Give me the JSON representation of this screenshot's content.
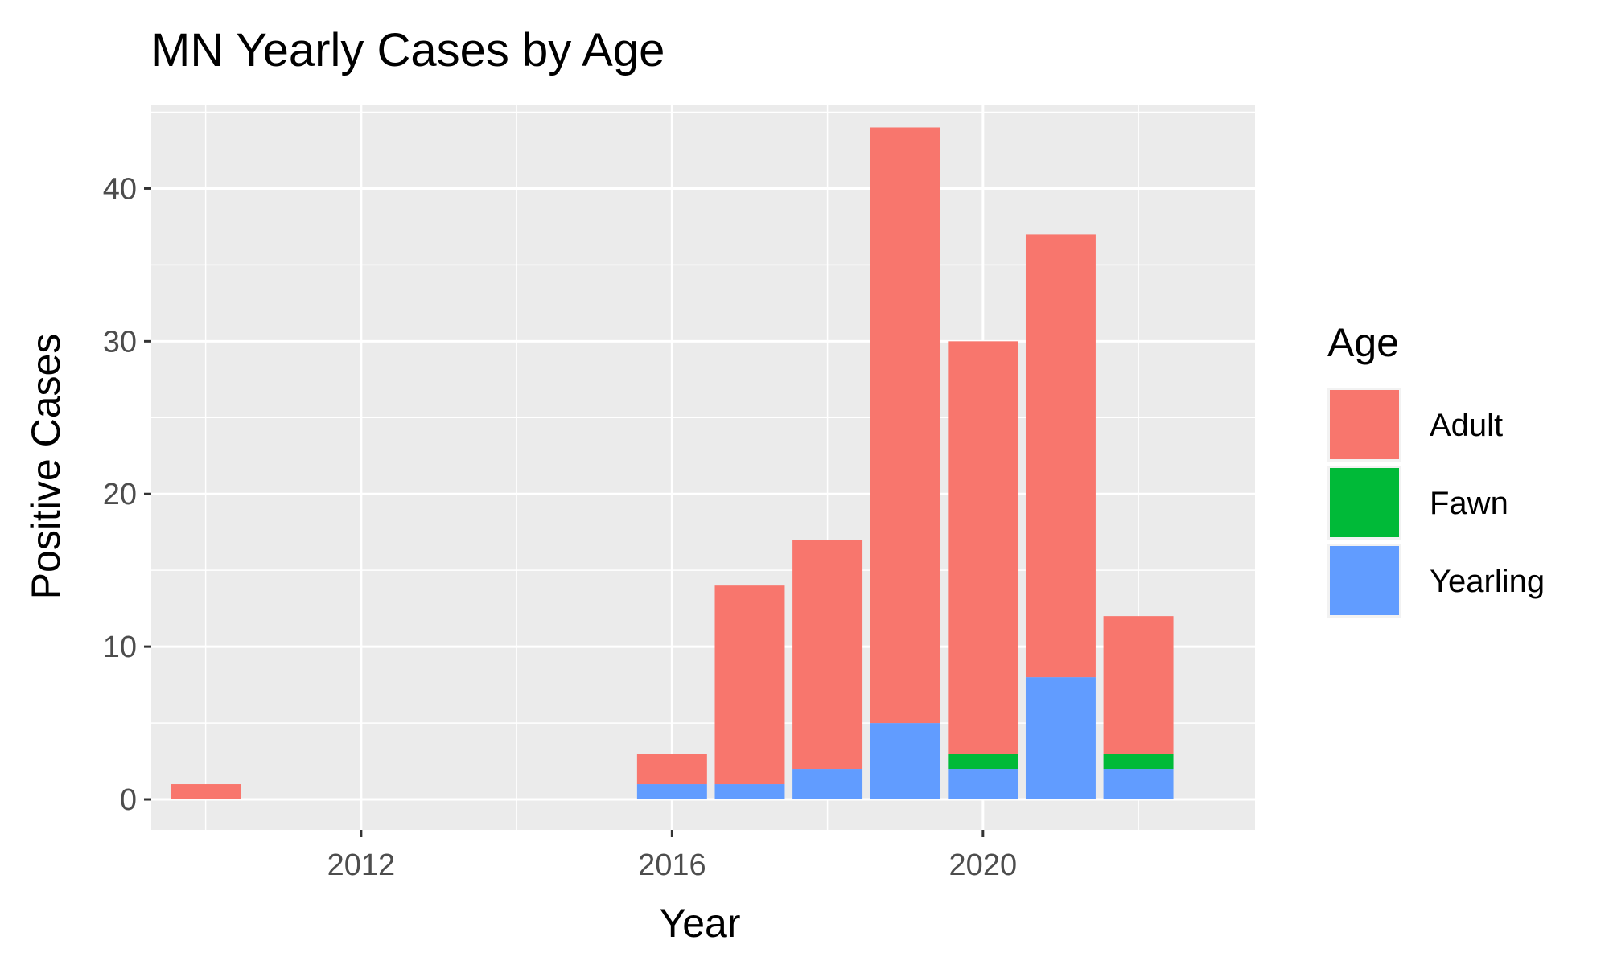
{
  "chart_data": {
    "type": "bar",
    "stacked": true,
    "title": "MN Yearly Cases by Age",
    "xlabel": "Year",
    "ylabel": "Positive Cases",
    "x": [
      2010,
      2016,
      2017,
      2018,
      2019,
      2020,
      2021,
      2022
    ],
    "xlim": [
      2009.3,
      2023.5
    ],
    "ylim": [
      -2,
      45.5
    ],
    "x_ticks": [
      2012,
      2016,
      2020
    ],
    "x_minor_ticks": [
      2010,
      2014,
      2018,
      2022
    ],
    "y_ticks": [
      0,
      10,
      20,
      30,
      40
    ],
    "y_minor_ticks": [
      5,
      15,
      25,
      35,
      45
    ],
    "grid": true,
    "legend": {
      "title": "Age",
      "position": "right"
    },
    "series": [
      {
        "name": "Yearling",
        "color": "#619CFF",
        "values": [
          0,
          1,
          1,
          2,
          5,
          2,
          8,
          2
        ]
      },
      {
        "name": "Fawn",
        "color": "#00BA38",
        "values": [
          0,
          0,
          0,
          0,
          0,
          1,
          0,
          1
        ]
      },
      {
        "name": "Adult",
        "color": "#F8766D",
        "values": [
          1,
          2,
          13,
          15,
          39,
          27,
          29,
          9
        ]
      }
    ],
    "legend_order": [
      "Adult",
      "Fawn",
      "Yearling"
    ],
    "panel_background": "#EBEBEB",
    "grid_color": "#FFFFFF"
  }
}
